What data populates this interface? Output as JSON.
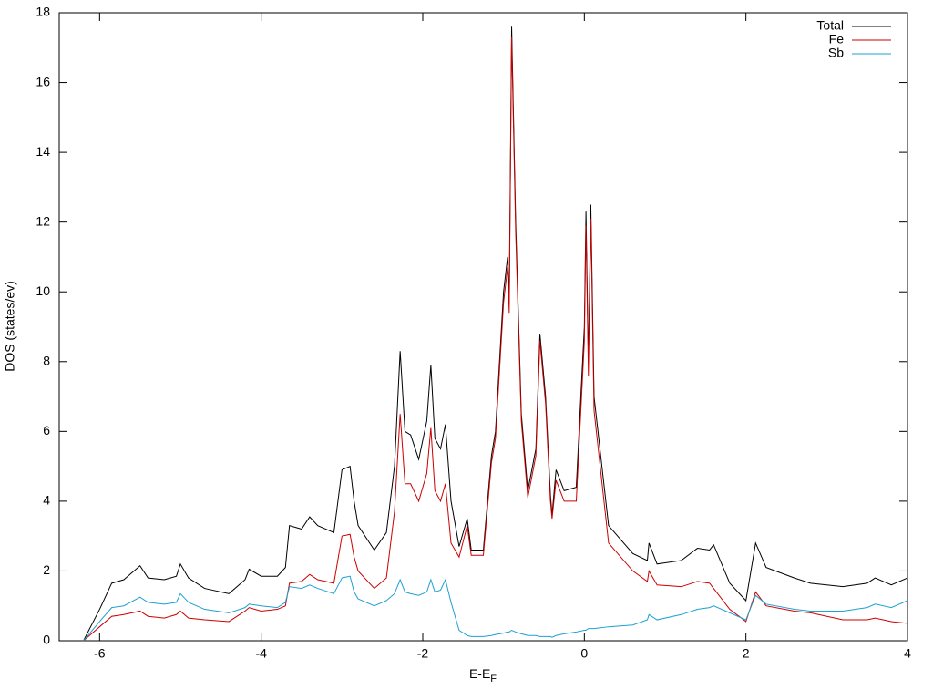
{
  "chart_data": {
    "type": "line",
    "xlabel": {
      "text": "E-E",
      "subscript": "F"
    },
    "ylabel": "DOS (states/ev)",
    "xlim": [
      -6.5,
      4
    ],
    "ylim": [
      0,
      18
    ],
    "xticks": [
      -6,
      -4,
      -2,
      0,
      2,
      4
    ],
    "yticks": [
      0,
      2,
      4,
      6,
      8,
      10,
      12,
      14,
      16,
      18
    ],
    "legend": "top-right",
    "x": [
      -6.2,
      -6.0,
      -5.85,
      -5.7,
      -5.5,
      -5.4,
      -5.2,
      -5.05,
      -5.0,
      -4.9,
      -4.7,
      -4.4,
      -4.2,
      -4.15,
      -4.0,
      -3.8,
      -3.7,
      -3.65,
      -3.5,
      -3.4,
      -3.3,
      -3.1,
      -3.0,
      -2.9,
      -2.85,
      -2.8,
      -2.6,
      -2.45,
      -2.35,
      -2.28,
      -2.22,
      -2.15,
      -2.05,
      -1.95,
      -1.9,
      -1.85,
      -1.78,
      -1.72,
      -1.65,
      -1.55,
      -1.45,
      -1.4,
      -1.25,
      -1.15,
      -1.1,
      -1.0,
      -0.95,
      -0.93,
      -0.9,
      -0.85,
      -0.78,
      -0.7,
      -0.6,
      -0.55,
      -0.48,
      -0.42,
      -0.4,
      -0.35,
      -0.25,
      -0.1,
      0.0,
      0.02,
      0.05,
      0.08,
      0.12,
      0.3,
      0.6,
      0.78,
      0.8,
      0.9,
      1.2,
      1.4,
      1.55,
      1.6,
      1.8,
      2.0,
      2.12,
      2.25,
      2.6,
      2.8,
      3.2,
      3.5,
      3.6,
      3.8,
      4.0
    ],
    "series": [
      {
        "name": "Total",
        "color": "#000000",
        "values": [
          0,
          0.9,
          1.65,
          1.75,
          2.15,
          1.8,
          1.75,
          1.85,
          2.2,
          1.8,
          1.5,
          1.35,
          1.75,
          2.05,
          1.85,
          1.85,
          2.1,
          3.3,
          3.2,
          3.55,
          3.3,
          3.1,
          4.9,
          5.0,
          4.0,
          3.3,
          2.6,
          3.1,
          5.0,
          8.3,
          6.0,
          5.9,
          5.2,
          6.3,
          7.9,
          5.8,
          5.5,
          6.2,
          4.0,
          2.7,
          3.5,
          2.6,
          2.6,
          5.3,
          6.0,
          10.0,
          11.0,
          9.7,
          17.6,
          12.0,
          6.5,
          4.3,
          5.5,
          8.8,
          7.0,
          4.2,
          3.6,
          4.9,
          4.3,
          4.4,
          9.0,
          12.3,
          8.0,
          12.5,
          7.0,
          3.3,
          2.5,
          2.3,
          2.8,
          2.2,
          2.3,
          2.65,
          2.6,
          2.75,
          1.65,
          1.15,
          2.8,
          2.1,
          1.8,
          1.65,
          1.55,
          1.65,
          1.8,
          1.6,
          1.8
        ]
      },
      {
        "name": "Fe",
        "color": "#cc0000",
        "values": [
          0,
          0.4,
          0.7,
          0.75,
          0.85,
          0.7,
          0.65,
          0.75,
          0.85,
          0.65,
          0.6,
          0.55,
          0.85,
          0.95,
          0.85,
          0.9,
          1.0,
          1.65,
          1.7,
          1.9,
          1.75,
          1.65,
          3.0,
          3.05,
          2.4,
          2.0,
          1.5,
          1.8,
          3.7,
          6.5,
          4.5,
          4.5,
          4.0,
          4.8,
          6.1,
          4.3,
          4.0,
          4.5,
          2.8,
          2.4,
          3.3,
          2.45,
          2.45,
          5.1,
          5.8,
          9.7,
          10.7,
          9.4,
          17.3,
          11.7,
          6.3,
          4.1,
          5.3,
          8.6,
          6.8,
          4.0,
          3.5,
          4.6,
          4.0,
          4.0,
          8.6,
          11.9,
          7.6,
          12.1,
          6.6,
          2.8,
          2.0,
          1.7,
          2.0,
          1.6,
          1.55,
          1.7,
          1.65,
          1.5,
          0.9,
          0.55,
          1.4,
          1.0,
          0.85,
          0.8,
          0.6,
          0.6,
          0.65,
          0.55,
          0.5
        ]
      },
      {
        "name": "Sb",
        "color": "#1ea0d2",
        "values": [
          0,
          0.55,
          0.95,
          1.0,
          1.25,
          1.1,
          1.05,
          1.1,
          1.35,
          1.1,
          0.9,
          0.8,
          0.95,
          1.05,
          1.0,
          0.95,
          1.1,
          1.55,
          1.5,
          1.6,
          1.5,
          1.35,
          1.8,
          1.85,
          1.4,
          1.2,
          1.0,
          1.15,
          1.35,
          1.75,
          1.4,
          1.35,
          1.3,
          1.4,
          1.75,
          1.4,
          1.45,
          1.75,
          1.1,
          0.3,
          0.15,
          0.12,
          0.12,
          0.15,
          0.18,
          0.22,
          0.25,
          0.25,
          0.3,
          0.25,
          0.2,
          0.15,
          0.15,
          0.12,
          0.12,
          0.12,
          0.1,
          0.15,
          0.2,
          0.25,
          0.3,
          0.3,
          0.35,
          0.35,
          0.35,
          0.4,
          0.45,
          0.6,
          0.75,
          0.6,
          0.75,
          0.9,
          0.95,
          1.0,
          0.8,
          0.6,
          1.3,
          1.05,
          0.9,
          0.85,
          0.85,
          0.95,
          1.05,
          0.95,
          1.15
        ]
      }
    ]
  }
}
